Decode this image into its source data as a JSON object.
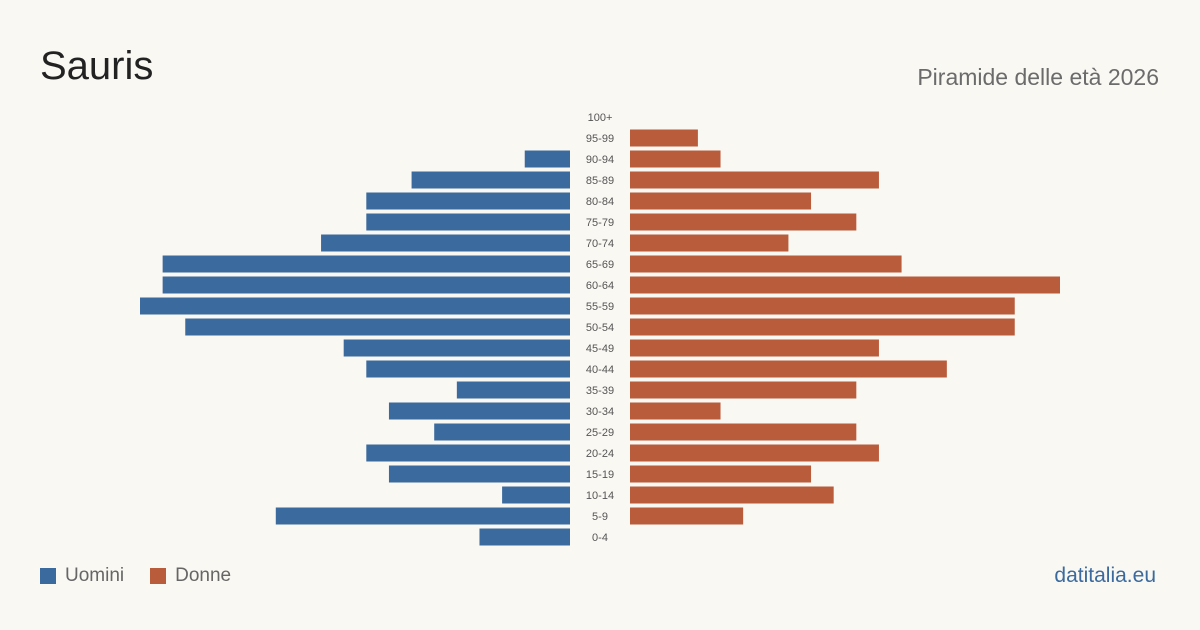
{
  "title": "Sauris",
  "subtitle": "Piramide delle età 2026",
  "brand": "datitalia.eu",
  "colors": {
    "men": "#3a6a9e",
    "women": "#b85c3c",
    "brand": "#3a6a9e"
  },
  "legend": {
    "men": "Uomini",
    "women": "Donne"
  },
  "chart_data": {
    "type": "bar",
    "orientation": "horizontal-pyramid",
    "title": "Sauris",
    "subtitle": "Piramide delle età 2026",
    "categories": [
      "100+",
      "95-99",
      "90-94",
      "85-89",
      "80-84",
      "75-79",
      "70-74",
      "65-69",
      "60-64",
      "55-59",
      "50-54",
      "45-49",
      "40-44",
      "35-39",
      "30-34",
      "25-29",
      "20-24",
      "15-19",
      "10-14",
      "5-9",
      "0-4"
    ],
    "series": [
      {
        "name": "Uomini",
        "values": [
          0,
          0,
          2,
          7,
          9,
          9,
          11,
          18,
          18,
          19,
          17,
          10,
          9,
          5,
          8,
          6,
          9,
          8,
          3,
          13,
          4
        ]
      },
      {
        "name": "Donne",
        "values": [
          0,
          3,
          4,
          11,
          8,
          10,
          7,
          12,
          19,
          17,
          17,
          11,
          14,
          10,
          4,
          10,
          11,
          8,
          9,
          5,
          0
        ]
      }
    ],
    "xlim": [
      0,
      19
    ],
    "legend_position": "bottom-left",
    "grid": false
  }
}
